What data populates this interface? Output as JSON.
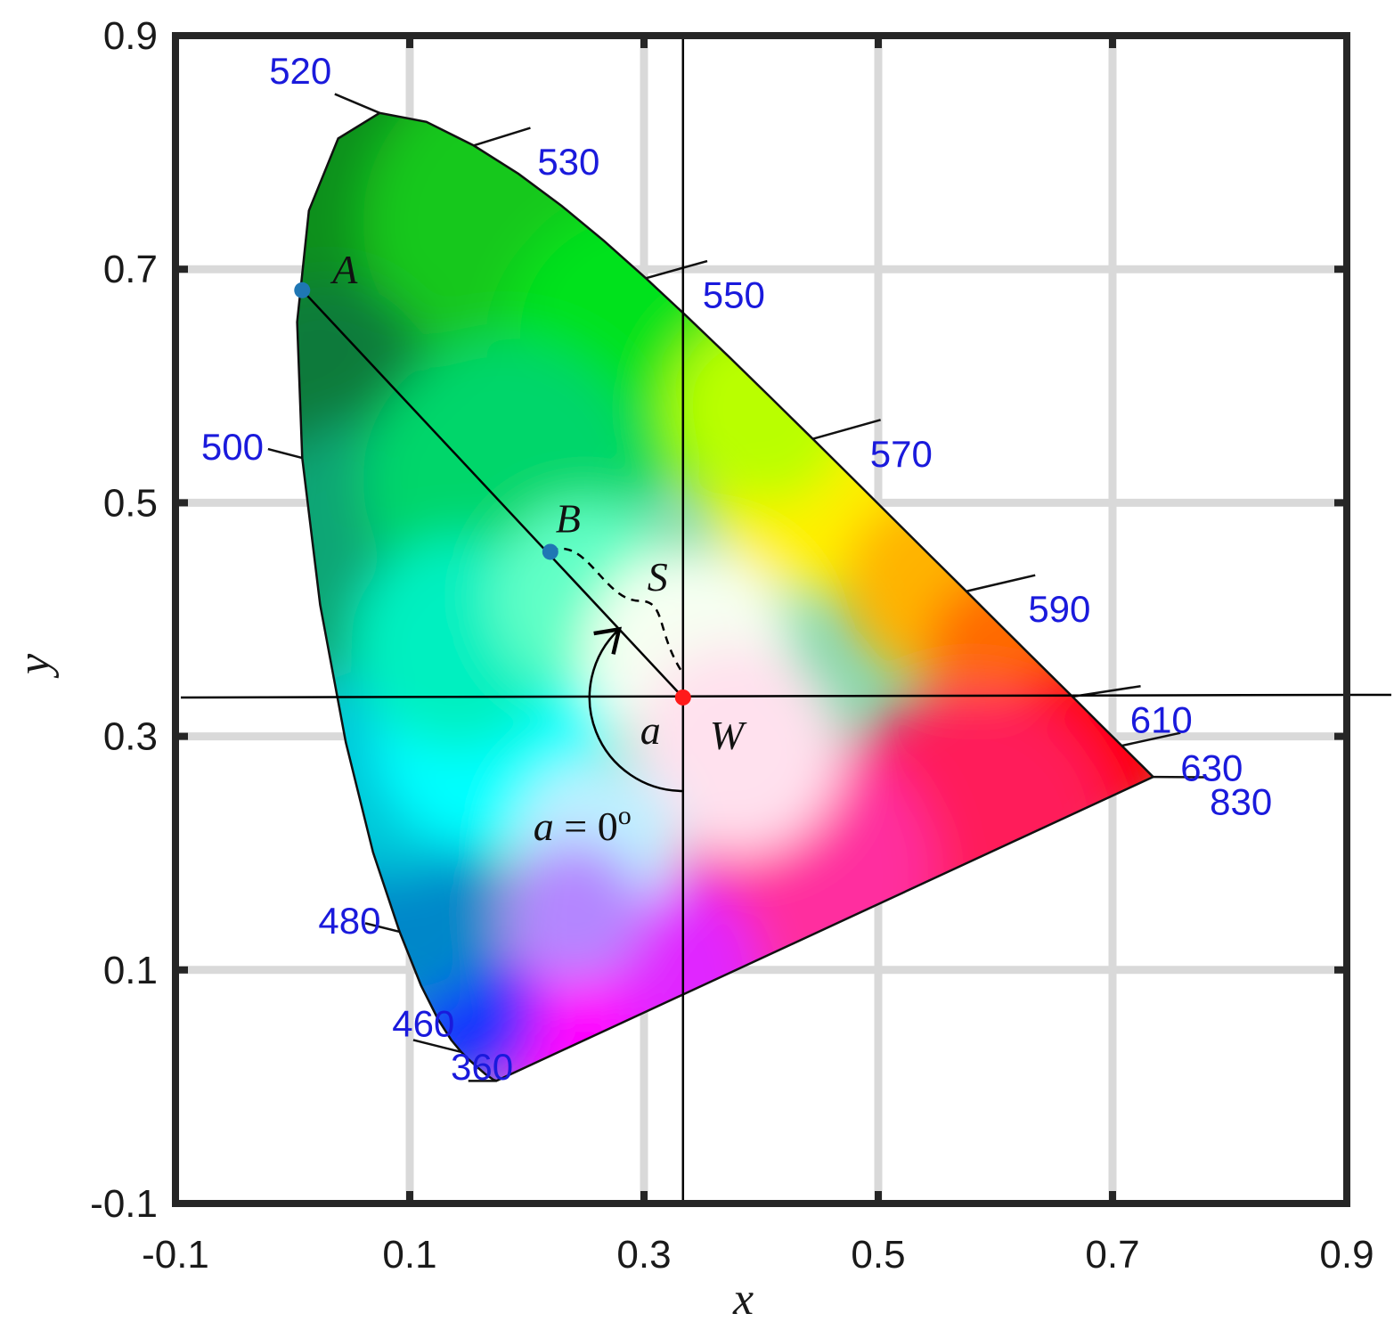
{
  "chart_data": {
    "type": "scatter",
    "xlabel": "x",
    "ylabel": "y",
    "xlim": [
      -0.1,
      0.9
    ],
    "ylim": [
      -0.1,
      0.9
    ],
    "x_ticks": [
      "-0.1",
      "0.1",
      "0.3",
      "0.5",
      "0.7",
      "0.9"
    ],
    "y_ticks": [
      "-0.1",
      "0.1",
      "0.3",
      "0.5",
      "0.7",
      "0.9"
    ],
    "grid": true,
    "colors": {
      "wavelength_label": "#1a1adc",
      "point_A": "#1f77b4",
      "point_B": "#1f77b4",
      "point_W": "#ff1a1a",
      "frame": "#262626",
      "grid": "#d9d9d9"
    },
    "spectral_locus": [
      {
        "nm": "360",
        "x": 0.1741,
        "y": 0.005
      },
      {
        "nm": "460",
        "x": 0.144,
        "y": 0.0297
      },
      {
        "nm": "480",
        "x": 0.0913,
        "y": 0.1327
      },
      {
        "nm": "500",
        "x": 0.0082,
        "y": 0.5384
      },
      {
        "nm": "520",
        "x": 0.0743,
        "y": 0.8338
      },
      {
        "nm": "530",
        "x": 0.1547,
        "y": 0.8059
      },
      {
        "nm": "550",
        "x": 0.3016,
        "y": 0.6923
      },
      {
        "nm": "570",
        "x": 0.4441,
        "y": 0.5547
      },
      {
        "nm": "590",
        "x": 0.5752,
        "y": 0.4242
      },
      {
        "nm": "610",
        "x": 0.6658,
        "y": 0.334
      },
      {
        "nm": "630",
        "x": 0.7079,
        "y": 0.292
      },
      {
        "nm": "830",
        "x": 0.7347,
        "y": 0.2653
      }
    ],
    "points": [
      {
        "label": "A",
        "x": 0.0082,
        "y": 0.682
      },
      {
        "label": "B",
        "x": 0.22,
        "y": 0.458
      },
      {
        "label": "W",
        "x": 0.3333,
        "y": 0.3333
      }
    ],
    "annotations": {
      "curve_label": "S",
      "angle_label": "a",
      "angle_zero_label": "a = 0",
      "angle_zero_unit": "o"
    }
  }
}
